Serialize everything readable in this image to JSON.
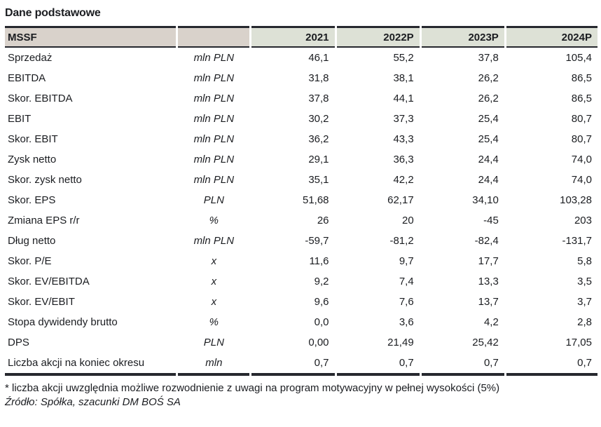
{
  "page": {
    "title": "Dane podstawowe",
    "footnote": "* liczba akcji uwzględnia możliwe rozwodnienie z uwagi na program motywacyjny w pełnej wysokości (5%)",
    "source": "Źródło: Spółka, szacunki DM BOŚ SA"
  },
  "colors": {
    "header_left_bg": "#d9d2cb",
    "header_right_bg": "#dde1d6",
    "border": "#26282e",
    "text": "#1b1d21"
  },
  "table": {
    "header": {
      "label": "MSSF",
      "unit": "",
      "years": [
        "2021",
        "2022P",
        "2023P",
        "2024P"
      ]
    },
    "rows": [
      {
        "label": "Sprzedaż",
        "unit": "mln PLN",
        "values": [
          "46,1",
          "55,2",
          "37,8",
          "105,4"
        ]
      },
      {
        "label": "EBITDA",
        "unit": "mln PLN",
        "values": [
          "31,8",
          "38,1",
          "26,2",
          "86,5"
        ]
      },
      {
        "label": "Skor. EBITDA",
        "unit": "mln PLN",
        "values": [
          "37,8",
          "44,1",
          "26,2",
          "86,5"
        ]
      },
      {
        "label": "EBIT",
        "unit": "mln PLN",
        "values": [
          "30,2",
          "37,3",
          "25,4",
          "80,7"
        ]
      },
      {
        "label": "Skor. EBIT",
        "unit": "mln PLN",
        "values": [
          "36,2",
          "43,3",
          "25,4",
          "80,7"
        ]
      },
      {
        "label": "Zysk netto",
        "unit": "mln PLN",
        "values": [
          "29,1",
          "36,3",
          "24,4",
          "74,0"
        ]
      },
      {
        "label": "Skor. zysk netto",
        "unit": "mln PLN",
        "values": [
          "35,1",
          "42,2",
          "24,4",
          "74,0"
        ]
      },
      {
        "label": "Skor. EPS",
        "unit": "PLN",
        "values": [
          "51,68",
          "62,17",
          "34,10",
          "103,28"
        ]
      },
      {
        "label": "Zmiana EPS r/r",
        "unit": "%",
        "values": [
          "26",
          "20",
          "-45",
          "203"
        ]
      },
      {
        "label": "Dług netto",
        "unit": "mln PLN",
        "values": [
          "-59,7",
          "-81,2",
          "-82,4",
          "-131,7"
        ]
      },
      {
        "label": "Skor. P/E",
        "unit": "x",
        "values": [
          "11,6",
          "9,7",
          "17,7",
          "5,8"
        ]
      },
      {
        "label": "Skor. EV/EBITDA",
        "unit": "x",
        "values": [
          "9,2",
          "7,4",
          "13,3",
          "3,5"
        ]
      },
      {
        "label": "Skor. EV/EBIT",
        "unit": "x",
        "values": [
          "9,6",
          "7,6",
          "13,7",
          "3,7"
        ]
      },
      {
        "label": "Stopa dywidendy brutto",
        "unit": "%",
        "values": [
          "0,0",
          "3,6",
          "4,2",
          "2,8"
        ]
      },
      {
        "label": "DPS",
        "unit": "PLN",
        "values": [
          "0,00",
          "21,49",
          "25,42",
          "17,05"
        ]
      },
      {
        "label": "Liczba akcji na koniec okresu",
        "unit": "mln",
        "values": [
          "0,7",
          "0,7",
          "0,7",
          "0,7"
        ]
      }
    ]
  }
}
